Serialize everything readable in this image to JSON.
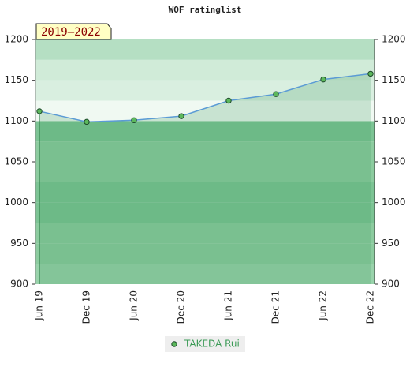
{
  "chart_data": {
    "type": "line",
    "title": "WOF ratinglist",
    "annotation": "2019–2022",
    "categories": [
      "Jun 19",
      "Dec 19",
      "Jun 20",
      "Dec 20",
      "Jun 21",
      "Dec 21",
      "Jun 22",
      "Dec 22"
    ],
    "series": [
      {
        "name": "TAKEDA Rui",
        "color": "#5b9bd5",
        "marker_color": "#5cb85c",
        "values": [
          1112,
          1099,
          1101,
          1106,
          1125,
          1133,
          1151,
          1158
        ]
      }
    ],
    "ylim": [
      900,
      1200
    ],
    "yticks": [
      900,
      950,
      1000,
      1050,
      1100,
      1150,
      1200
    ],
    "right_axis": true,
    "area": true
  }
}
